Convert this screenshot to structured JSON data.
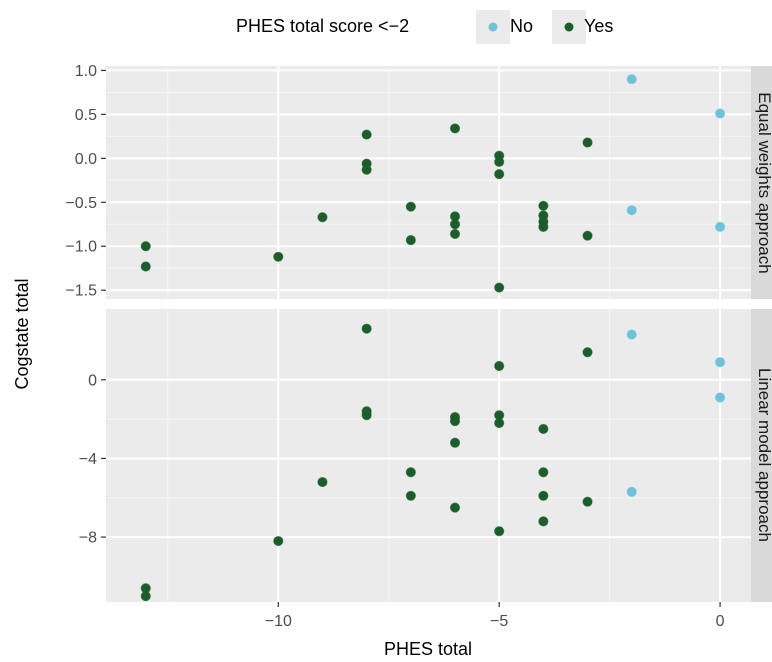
{
  "chart_data": {
    "type": "scatter",
    "xlabel": "PHES total",
    "ylabel": "Cogstate total",
    "xlim": [
      -13.9,
      0.7
    ],
    "x_ticks": [
      -10,
      -5,
      0
    ],
    "x_tick_labels": [
      "−10",
      "−5",
      "0"
    ],
    "grid": true,
    "legend": {
      "title": "PHES total score <−2",
      "position": "top",
      "entries": [
        {
          "key": "no",
          "label": "No",
          "color": "#6cc3dc"
        },
        {
          "key": "yes",
          "label": "Yes",
          "color": "#1a5e2a"
        }
      ]
    },
    "panels": [
      {
        "strip": "Equal weights approach",
        "ylim": [
          -1.6,
          1.05
        ],
        "y_ticks": [
          1.0,
          0.5,
          0.0,
          -0.5,
          -1.0,
          -1.5
        ],
        "y_tick_labels": [
          "1.0",
          "0.5",
          "0.0",
          "−0.5",
          "−1.0",
          "−1.5"
        ],
        "points": [
          {
            "x": -13,
            "y": -1.0,
            "group": "yes"
          },
          {
            "x": -13,
            "y": -1.23,
            "group": "yes"
          },
          {
            "x": -10,
            "y": -1.12,
            "group": "yes"
          },
          {
            "x": -9,
            "y": -0.67,
            "group": "yes"
          },
          {
            "x": -8,
            "y": 0.27,
            "group": "yes"
          },
          {
            "x": -8,
            "y": -0.06,
            "group": "yes"
          },
          {
            "x": -8,
            "y": -0.13,
            "group": "yes"
          },
          {
            "x": -7,
            "y": -0.55,
            "group": "yes"
          },
          {
            "x": -7,
            "y": -0.93,
            "group": "yes"
          },
          {
            "x": -6,
            "y": 0.34,
            "group": "yes"
          },
          {
            "x": -6,
            "y": -0.66,
            "group": "yes"
          },
          {
            "x": -6,
            "y": -0.75,
            "group": "yes"
          },
          {
            "x": -6,
            "y": -0.86,
            "group": "yes"
          },
          {
            "x": -5,
            "y": 0.03,
            "group": "yes"
          },
          {
            "x": -5,
            "y": -0.04,
            "group": "yes"
          },
          {
            "x": -5,
            "y": -0.18,
            "group": "yes"
          },
          {
            "x": -5,
            "y": -1.47,
            "group": "yes"
          },
          {
            "x": -4,
            "y": -0.54,
            "group": "yes"
          },
          {
            "x": -4,
            "y": -0.65,
            "group": "yes"
          },
          {
            "x": -4,
            "y": -0.72,
            "group": "yes"
          },
          {
            "x": -4,
            "y": -0.78,
            "group": "yes"
          },
          {
            "x": -3,
            "y": 0.18,
            "group": "yes"
          },
          {
            "x": -3,
            "y": -0.88,
            "group": "yes"
          },
          {
            "x": -2,
            "y": 0.9,
            "group": "no"
          },
          {
            "x": -2,
            "y": -0.59,
            "group": "no"
          },
          {
            "x": 0,
            "y": 0.51,
            "group": "no"
          },
          {
            "x": 0,
            "y": -0.78,
            "group": "no"
          }
        ]
      },
      {
        "strip": "Linear model approach",
        "ylim": [
          -11.3,
          3.6
        ],
        "y_ticks": [
          0,
          -4,
          -8
        ],
        "y_tick_labels": [
          "0",
          "−4",
          "−8"
        ],
        "points": [
          {
            "x": -13,
            "y": -10.6,
            "group": "yes"
          },
          {
            "x": -13,
            "y": -11.0,
            "group": "yes"
          },
          {
            "x": -10,
            "y": -8.2,
            "group": "yes"
          },
          {
            "x": -9,
            "y": -5.2,
            "group": "yes"
          },
          {
            "x": -8,
            "y": 2.6,
            "group": "yes"
          },
          {
            "x": -8,
            "y": -1.6,
            "group": "yes"
          },
          {
            "x": -8,
            "y": -1.8,
            "group": "yes"
          },
          {
            "x": -7,
            "y": -4.7,
            "group": "yes"
          },
          {
            "x": -7,
            "y": -5.9,
            "group": "yes"
          },
          {
            "x": -6,
            "y": -1.9,
            "group": "yes"
          },
          {
            "x": -6,
            "y": -2.1,
            "group": "yes"
          },
          {
            "x": -6,
            "y": -3.2,
            "group": "yes"
          },
          {
            "x": -6,
            "y": -6.5,
            "group": "yes"
          },
          {
            "x": -5,
            "y": 0.7,
            "group": "yes"
          },
          {
            "x": -5,
            "y": -1.8,
            "group": "yes"
          },
          {
            "x": -5,
            "y": -2.2,
            "group": "yes"
          },
          {
            "x": -5,
            "y": -7.7,
            "group": "yes"
          },
          {
            "x": -4,
            "y": -2.5,
            "group": "yes"
          },
          {
            "x": -4,
            "y": -4.7,
            "group": "yes"
          },
          {
            "x": -4,
            "y": -5.9,
            "group": "yes"
          },
          {
            "x": -4,
            "y": -7.2,
            "group": "yes"
          },
          {
            "x": -3,
            "y": 1.4,
            "group": "yes"
          },
          {
            "x": -3,
            "y": -6.2,
            "group": "yes"
          },
          {
            "x": -2,
            "y": 2.3,
            "group": "no"
          },
          {
            "x": -2,
            "y": -5.7,
            "group": "no"
          },
          {
            "x": 0,
            "y": 0.9,
            "group": "no"
          },
          {
            "x": 0,
            "y": -0.9,
            "group": "no"
          }
        ]
      }
    ]
  }
}
